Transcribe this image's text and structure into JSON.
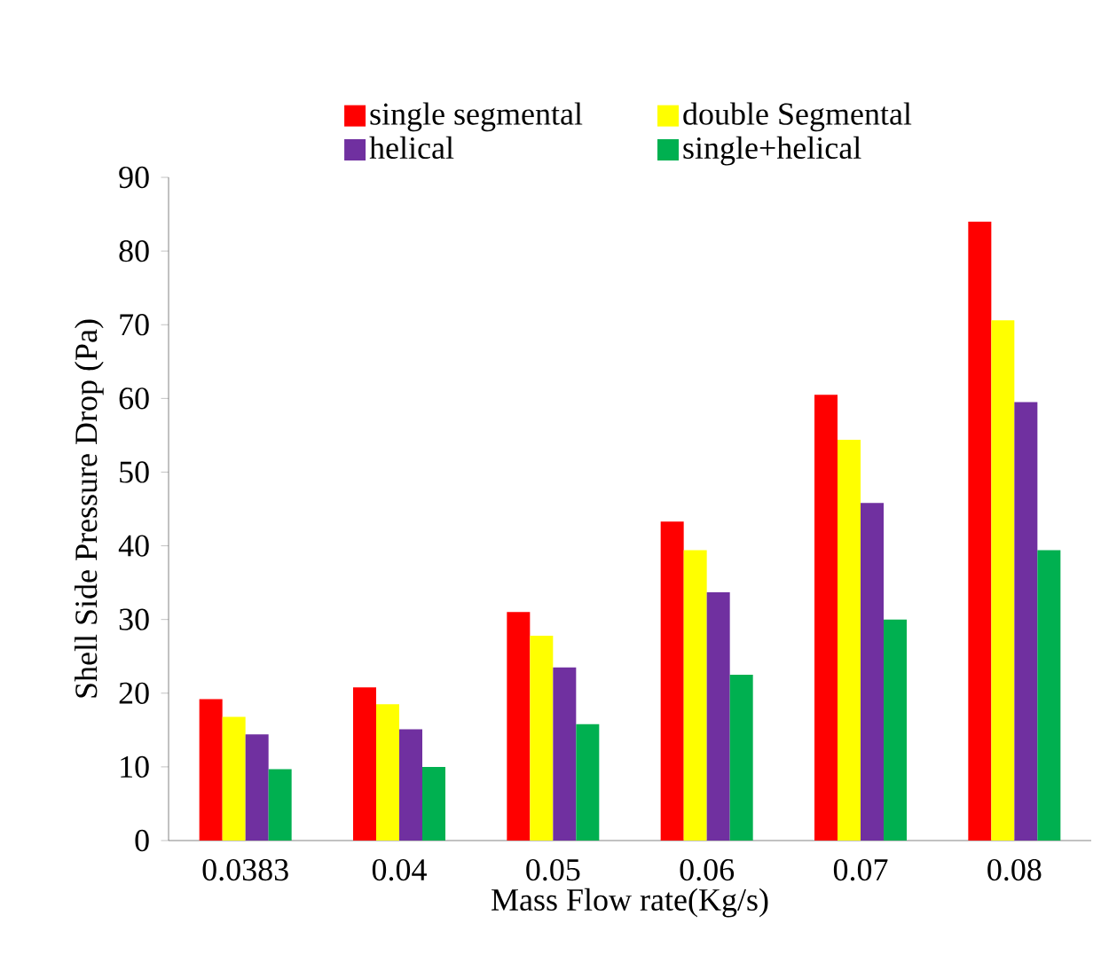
{
  "chart_data": {
    "type": "bar",
    "xlabel": "Mass Flow rate(Kg/s)",
    "ylabel": "Shell   Side Pressure Drop (Pa)",
    "categories": [
      "0.0383",
      "0.04",
      "0.05",
      "0.06",
      "0.07",
      "0.08"
    ],
    "series": [
      {
        "name": "single segmental",
        "color": "#ff0000",
        "values": [
          19.2,
          20.8,
          31.0,
          43.3,
          60.5,
          84.0
        ]
      },
      {
        "name": "double Segmental",
        "color": "#ffff00",
        "values": [
          16.8,
          18.5,
          27.8,
          39.4,
          54.4,
          70.6
        ]
      },
      {
        "name": "helical",
        "color": "#7030a0",
        "values": [
          14.4,
          15.1,
          23.5,
          33.7,
          45.8,
          59.5
        ]
      },
      {
        "name": "single+helical",
        "color": "#00b050",
        "values": [
          9.7,
          10.0,
          15.8,
          22.5,
          30.0,
          39.4
        ]
      }
    ],
    "ylim": [
      0,
      90
    ],
    "yticks": [
      0,
      10,
      20,
      30,
      40,
      50,
      60,
      70,
      80,
      90
    ],
    "legend": "top"
  }
}
